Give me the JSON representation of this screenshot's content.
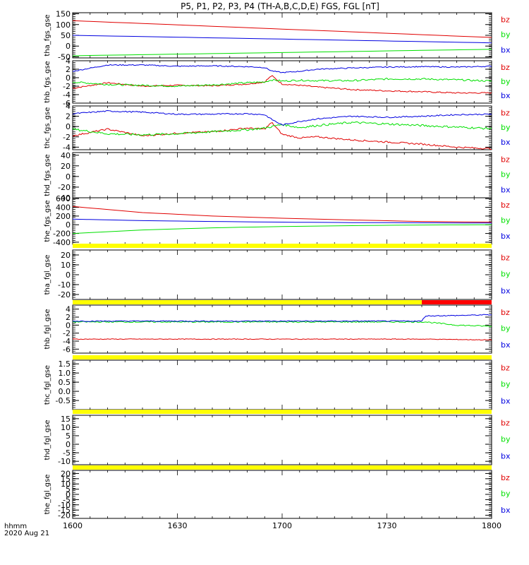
{
  "title": "P5, P1, P2, P3, P4 (TH-A,B,C,D,E) FGS, FGL [nT]",
  "xaxis": {
    "label_line1": "hhmm",
    "label_line2": "2020 Aug 21",
    "ticks": [
      "1600",
      "1630",
      "1700",
      "1730",
      "1800"
    ],
    "range_min": [
      0,
      120
    ]
  },
  "colors": {
    "bz": "#e00000",
    "by": "#00e000",
    "bx": "#0000e0",
    "bar_yellow": "#ffff00",
    "bar_red": "#ff0000"
  },
  "legend": [
    "bz",
    "by",
    "bx"
  ],
  "chart_data": [
    {
      "type": "line",
      "panel": "tha_fgs_gse",
      "ylabel": "tha_fgs_gse",
      "ylim": [
        -55,
        155
      ],
      "yticks": [
        "150",
        "100",
        "50",
        "0",
        "-50"
      ],
      "ytick_values": [
        150,
        100,
        50,
        0,
        -50
      ],
      "x": [
        0,
        120
      ],
      "series": [
        {
          "name": "bz",
          "key": "bz",
          "values": [
            118,
            40
          ],
          "noise": 0
        },
        {
          "name": "by",
          "key": "by",
          "values": [
            -45,
            -15
          ],
          "noise": 0
        },
        {
          "name": "bx",
          "key": "bx",
          "values": [
            50,
            15
          ],
          "noise": 0
        }
      ]
    },
    {
      "type": "line",
      "panel": "thb_fgs_gse",
      "ylabel": "thb_fgs_gse",
      "ylim": [
        -6,
        4
      ],
      "yticks": [
        "4",
        "2",
        "0",
        "-2",
        "-4",
        "-6"
      ],
      "ytick_values": [
        4,
        2,
        0,
        -2,
        -4,
        -6
      ],
      "x": [
        0,
        10,
        20,
        30,
        40,
        50,
        55,
        57,
        60,
        65,
        70,
        80,
        90,
        100,
        110,
        120
      ],
      "series": [
        {
          "name": "bz",
          "key": "bz",
          "values": [
            -2.5,
            -1.2,
            -2.0,
            -1.8,
            -1.9,
            -1.5,
            -1.0,
            0.5,
            -1.5,
            -1.8,
            -2.2,
            -2.8,
            -3.1,
            -3.3,
            -3.6,
            -3.6
          ],
          "noise": 0.15
        },
        {
          "name": "by",
          "key": "by",
          "values": [
            -1.0,
            -1.6,
            -1.8,
            -2.0,
            -1.7,
            -1.2,
            -1.0,
            -0.5,
            -0.8,
            -0.6,
            -0.7,
            -0.7,
            -0.3,
            -0.3,
            -0.5,
            -0.8
          ],
          "noise": 0.2
        },
        {
          "name": "bx",
          "key": "bx",
          "values": [
            1.5,
            3.0,
            3.0,
            2.7,
            2.8,
            2.6,
            2.4,
            1.6,
            1.2,
            1.5,
            2.0,
            2.3,
            2.5,
            2.6,
            2.5,
            2.7
          ],
          "noise": 0.12
        }
      ]
    },
    {
      "type": "line",
      "panel": "thc_fgs_gse",
      "ylabel": "thc_fgs_gse",
      "ylim": [
        -4.5,
        4
      ],
      "yticks": [
        "4",
        "2",
        "0",
        "-2",
        "-4"
      ],
      "ytick_values": [
        4,
        2,
        0,
        -2,
        -4
      ],
      "x": [
        0,
        10,
        20,
        30,
        40,
        50,
        55,
        57,
        60,
        65,
        70,
        80,
        90,
        100,
        110,
        120
      ],
      "series": [
        {
          "name": "bz",
          "key": "bz",
          "values": [
            -1.8,
            -0.5,
            -1.8,
            -1.3,
            -1.0,
            -0.3,
            -0.5,
            0.8,
            -1.5,
            -2.2,
            -2.0,
            -2.6,
            -3.0,
            -3.4,
            -4.0,
            -4.3
          ],
          "noise": 0.15
        },
        {
          "name": "by",
          "key": "by",
          "values": [
            -0.5,
            -1.4,
            -1.6,
            -1.4,
            -1.0,
            -0.6,
            -0.3,
            0.0,
            0.4,
            -0.2,
            0.2,
            0.8,
            0.5,
            0.2,
            -0.1,
            -0.4
          ],
          "noise": 0.2
        },
        {
          "name": "bx",
          "key": "bx",
          "values": [
            2.5,
            3.0,
            2.8,
            2.4,
            2.4,
            2.5,
            2.3,
            1.4,
            0.3,
            1.0,
            1.5,
            2.0,
            1.8,
            2.0,
            2.3,
            2.4
          ],
          "noise": 0.12
        }
      ]
    },
    {
      "type": "line",
      "panel": "thd_fgs_gse",
      "ylabel": "thd_fgs_gse",
      "ylim": [
        -40,
        45
      ],
      "yticks": [
        "40",
        "20",
        "0",
        "-20",
        "-40"
      ],
      "ytick_values": [
        40,
        20,
        0,
        -20,
        -40
      ],
      "x": [
        0,
        120
      ],
      "series": []
    },
    {
      "type": "line",
      "panel": "the_fgs_gse",
      "ylabel": "the_fgs_gse",
      "ylim": [
        -450,
        620
      ],
      "yticks": [
        "600",
        "400",
        "200",
        "0",
        "-200",
        "-400"
      ],
      "ytick_values": [
        600,
        400,
        200,
        0,
        -200,
        -400
      ],
      "x": [
        0,
        20,
        40,
        60,
        80,
        100,
        120
      ],
      "series": [
        {
          "name": "bz",
          "key": "bz",
          "values": [
            420,
            280,
            200,
            150,
            110,
            75,
            60
          ],
          "noise": 0
        },
        {
          "name": "by",
          "key": "by",
          "values": [
            -200,
            -120,
            -70,
            -40,
            -20,
            -5,
            0
          ],
          "noise": 0
        },
        {
          "name": "bx",
          "key": "bx",
          "values": [
            130,
            95,
            75,
            60,
            50,
            45,
            40
          ],
          "noise": 0
        }
      ]
    },
    {
      "type": "line",
      "panel": "tha_fgl_gse",
      "ylabel": "tha_fgl_gse",
      "ylim": [
        -25,
        25
      ],
      "yticks": [
        "20",
        "10",
        "0",
        "-10",
        "-20"
      ],
      "ytick_values": [
        20,
        10,
        0,
        -10,
        -20
      ],
      "x": [
        0,
        120
      ],
      "series": []
    },
    {
      "type": "line",
      "panel": "thb_fgl_gse",
      "ylabel": "thb_fgl_gse",
      "ylim": [
        -7,
        5
      ],
      "yticks": [
        "4",
        "2",
        "0",
        "-2",
        "-4",
        "-6"
      ],
      "ytick_values": [
        4,
        2,
        0,
        -2,
        -4,
        -6
      ],
      "x": [
        0,
        100,
        101,
        110,
        120
      ],
      "series": [
        {
          "name": "bz",
          "key": "bz",
          "values": [
            -3.5,
            -3.5,
            -3.5,
            -3.6,
            -3.7
          ],
          "noise": 0.08
        },
        {
          "name": "by",
          "key": "by",
          "values": [
            0.8,
            0.8,
            0.8,
            0.0,
            -0.3
          ],
          "noise": 0.15
        },
        {
          "name": "bx",
          "key": "bx",
          "values": [
            1.0,
            1.0,
            2.3,
            2.4,
            2.6
          ],
          "noise": 0.12
        }
      ]
    },
    {
      "type": "line",
      "panel": "thc_fgl_gse",
      "ylabel": "thc_fgl_gse",
      "ylim": [
        -1.0,
        1.7
      ],
      "yticks": [
        "1.5",
        "1.0",
        "0.5",
        "0.0",
        "-0.5"
      ],
      "ytick_values": [
        1.5,
        1.0,
        0.5,
        0.0,
        -0.5
      ],
      "x": [
        0,
        120
      ],
      "series": []
    },
    {
      "type": "line",
      "panel": "thd_fgl_gse",
      "ylabel": "thd_fgl_gse",
      "ylim": [
        -12,
        17
      ],
      "yticks": [
        "15",
        "10",
        "5",
        "0",
        "-5",
        "-10"
      ],
      "ytick_values": [
        15,
        10,
        5,
        0,
        -5,
        -10
      ],
      "x": [
        0,
        120
      ],
      "series": []
    },
    {
      "type": "line",
      "panel": "the_fgl_gse",
      "ylabel": "the_fgl_gse",
      "ylim": [
        -23,
        23
      ],
      "yticks": [
        "20",
        "15",
        "10",
        "5",
        "0",
        "-5",
        "-10",
        "-15",
        "-20"
      ],
      "ytick_values": [
        20,
        15,
        10,
        5,
        0,
        -5,
        -10,
        -15,
        -20
      ],
      "x": [
        0,
        120
      ],
      "series": []
    }
  ],
  "status_bars": [
    {
      "after_panel": 4,
      "segments": [
        {
          "from": 0,
          "to": 120,
          "color": "bar_yellow"
        }
      ]
    },
    {
      "after_panel": 5,
      "segments": [
        {
          "from": 0,
          "to": 100,
          "color": "bar_yellow"
        },
        {
          "from": 100,
          "to": 120,
          "color": "bar_red"
        }
      ]
    },
    {
      "after_panel": 6,
      "segments": [
        {
          "from": 0,
          "to": 120,
          "color": "bar_yellow"
        }
      ]
    },
    {
      "after_panel": 7,
      "segments": [
        {
          "from": 0,
          "to": 120,
          "color": "bar_yellow"
        }
      ]
    },
    {
      "after_panel": 8,
      "segments": [
        {
          "from": 0,
          "to": 120,
          "color": "bar_yellow"
        }
      ]
    }
  ]
}
